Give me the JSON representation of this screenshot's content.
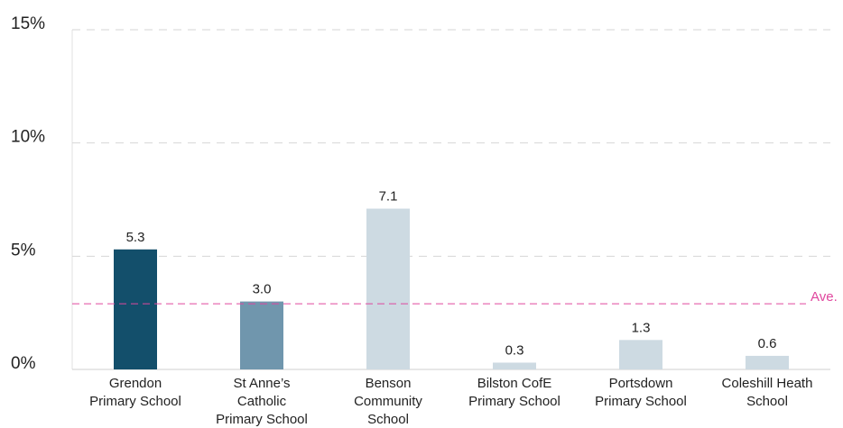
{
  "chart_data": {
    "type": "bar",
    "categories": [
      [
        "Grendon",
        "Primary School"
      ],
      [
        "St Anne’s",
        "Catholic",
        "Primary School"
      ],
      [
        "Benson",
        "Community",
        "School"
      ],
      [
        "Bilston CofE",
        "Primary School"
      ],
      [
        "Portsdown",
        "Primary School"
      ],
      [
        "Coleshill Heath",
        "School"
      ]
    ],
    "values": [
      5.3,
      3.0,
      7.1,
      0.3,
      1.3,
      0.6
    ],
    "value_labels": [
      "5.3",
      "3.0",
      "7.1",
      "0.3",
      "1.3",
      "0.6"
    ],
    "colors": [
      "#134f6b",
      "#7096ad",
      "#cddae2",
      "#cddae2",
      "#cddae2",
      "#cddae2"
    ],
    "ylim": [
      0,
      15
    ],
    "yticks": [
      {
        "value": 0,
        "label": "0%"
      },
      {
        "value": 5,
        "label": "5%"
      },
      {
        "value": 10,
        "label": "10%"
      },
      {
        "value": 15,
        "label": "15%"
      }
    ],
    "grid": true,
    "average": {
      "value": 2.9,
      "label": "Ave.",
      "color": "#e0479e"
    }
  }
}
